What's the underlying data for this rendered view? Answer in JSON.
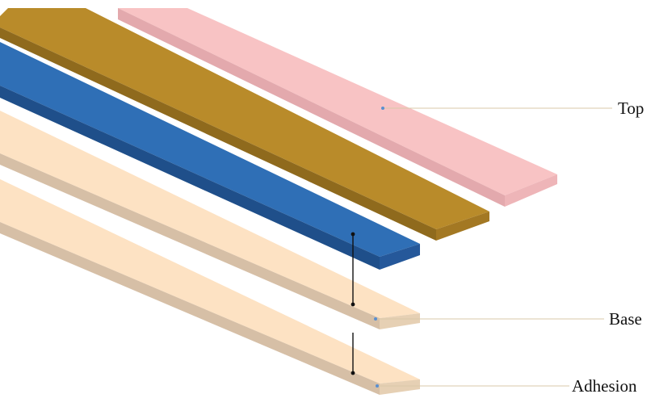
{
  "diagram": {
    "labels": {
      "top": "Top",
      "base": "Base",
      "adhesion": "Adhesion"
    },
    "colors": {
      "top_layer": "#f8c3c4",
      "gold_layer": "#b98b2a",
      "blue_layer": "#2f6fb6",
      "base_layer": "#fde2c3",
      "adhesion_layer": "#fde2c3",
      "callout_line": "#d9c9a8"
    }
  }
}
